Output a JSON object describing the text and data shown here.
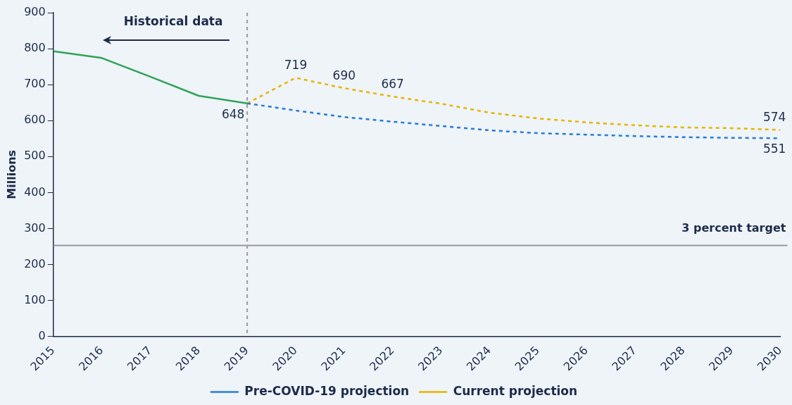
{
  "chart_data": {
    "type": "line",
    "ylabel": "Millions",
    "xlim": [
      2015,
      2030
    ],
    "xticks": [
      2015,
      2016,
      2017,
      2018,
      2019,
      2020,
      2021,
      2022,
      2023,
      2024,
      2025,
      2026,
      2027,
      2028,
      2029,
      2030
    ],
    "ylim": [
      0,
      900
    ],
    "yticks": [
      0,
      100,
      200,
      300,
      400,
      500,
      600,
      700,
      800,
      900
    ],
    "grid": false,
    "legend": "bottom",
    "marker": "none",
    "series": [
      {
        "color": "#2fa35a",
        "line_style": "solid",
        "x": [
          2015,
          2016,
          2017,
          2018,
          2019
        ],
        "values": [
          793,
          774,
          722,
          669,
          648
        ],
        "value_labels": [
          null,
          null,
          null,
          null,
          "648"
        ]
      },
      {
        "name": "Pre-COVID-19 projection",
        "color": "#2b7bd0",
        "line_style": "dashed",
        "x": [
          2019,
          2020,
          2021,
          2022,
          2023,
          2024,
          2025,
          2026,
          2027,
          2028,
          2029,
          2030
        ],
        "values": [
          648,
          628,
          610,
          597,
          585,
          573,
          565,
          561,
          557,
          554,
          552,
          551
        ],
        "value_labels": [
          null,
          null,
          null,
          null,
          null,
          null,
          null,
          null,
          null,
          null,
          null,
          "551"
        ]
      },
      {
        "name": "Current projection",
        "color": "#e8b400",
        "line_style": "dashed",
        "x": [
          2019,
          2020,
          2021,
          2022,
          2023,
          2024,
          2025,
          2026,
          2027,
          2028,
          2029,
          2030
        ],
        "values": [
          648,
          719,
          690,
          667,
          647,
          622,
          606,
          595,
          587,
          581,
          579,
          574
        ],
        "value_labels": [
          null,
          "719",
          "690",
          "667",
          null,
          null,
          null,
          null,
          null,
          null,
          null,
          "574"
        ]
      }
    ],
    "ref_lines": [
      {
        "axis": "x",
        "value": 2019,
        "color": "#9a9a9a",
        "line_style": "dashed"
      },
      {
        "axis": "y",
        "value": 253,
        "label": "3 percent target",
        "color": "#9a9a9a",
        "line_style": "solid"
      }
    ],
    "annotations": [
      "Historical data"
    ]
  }
}
